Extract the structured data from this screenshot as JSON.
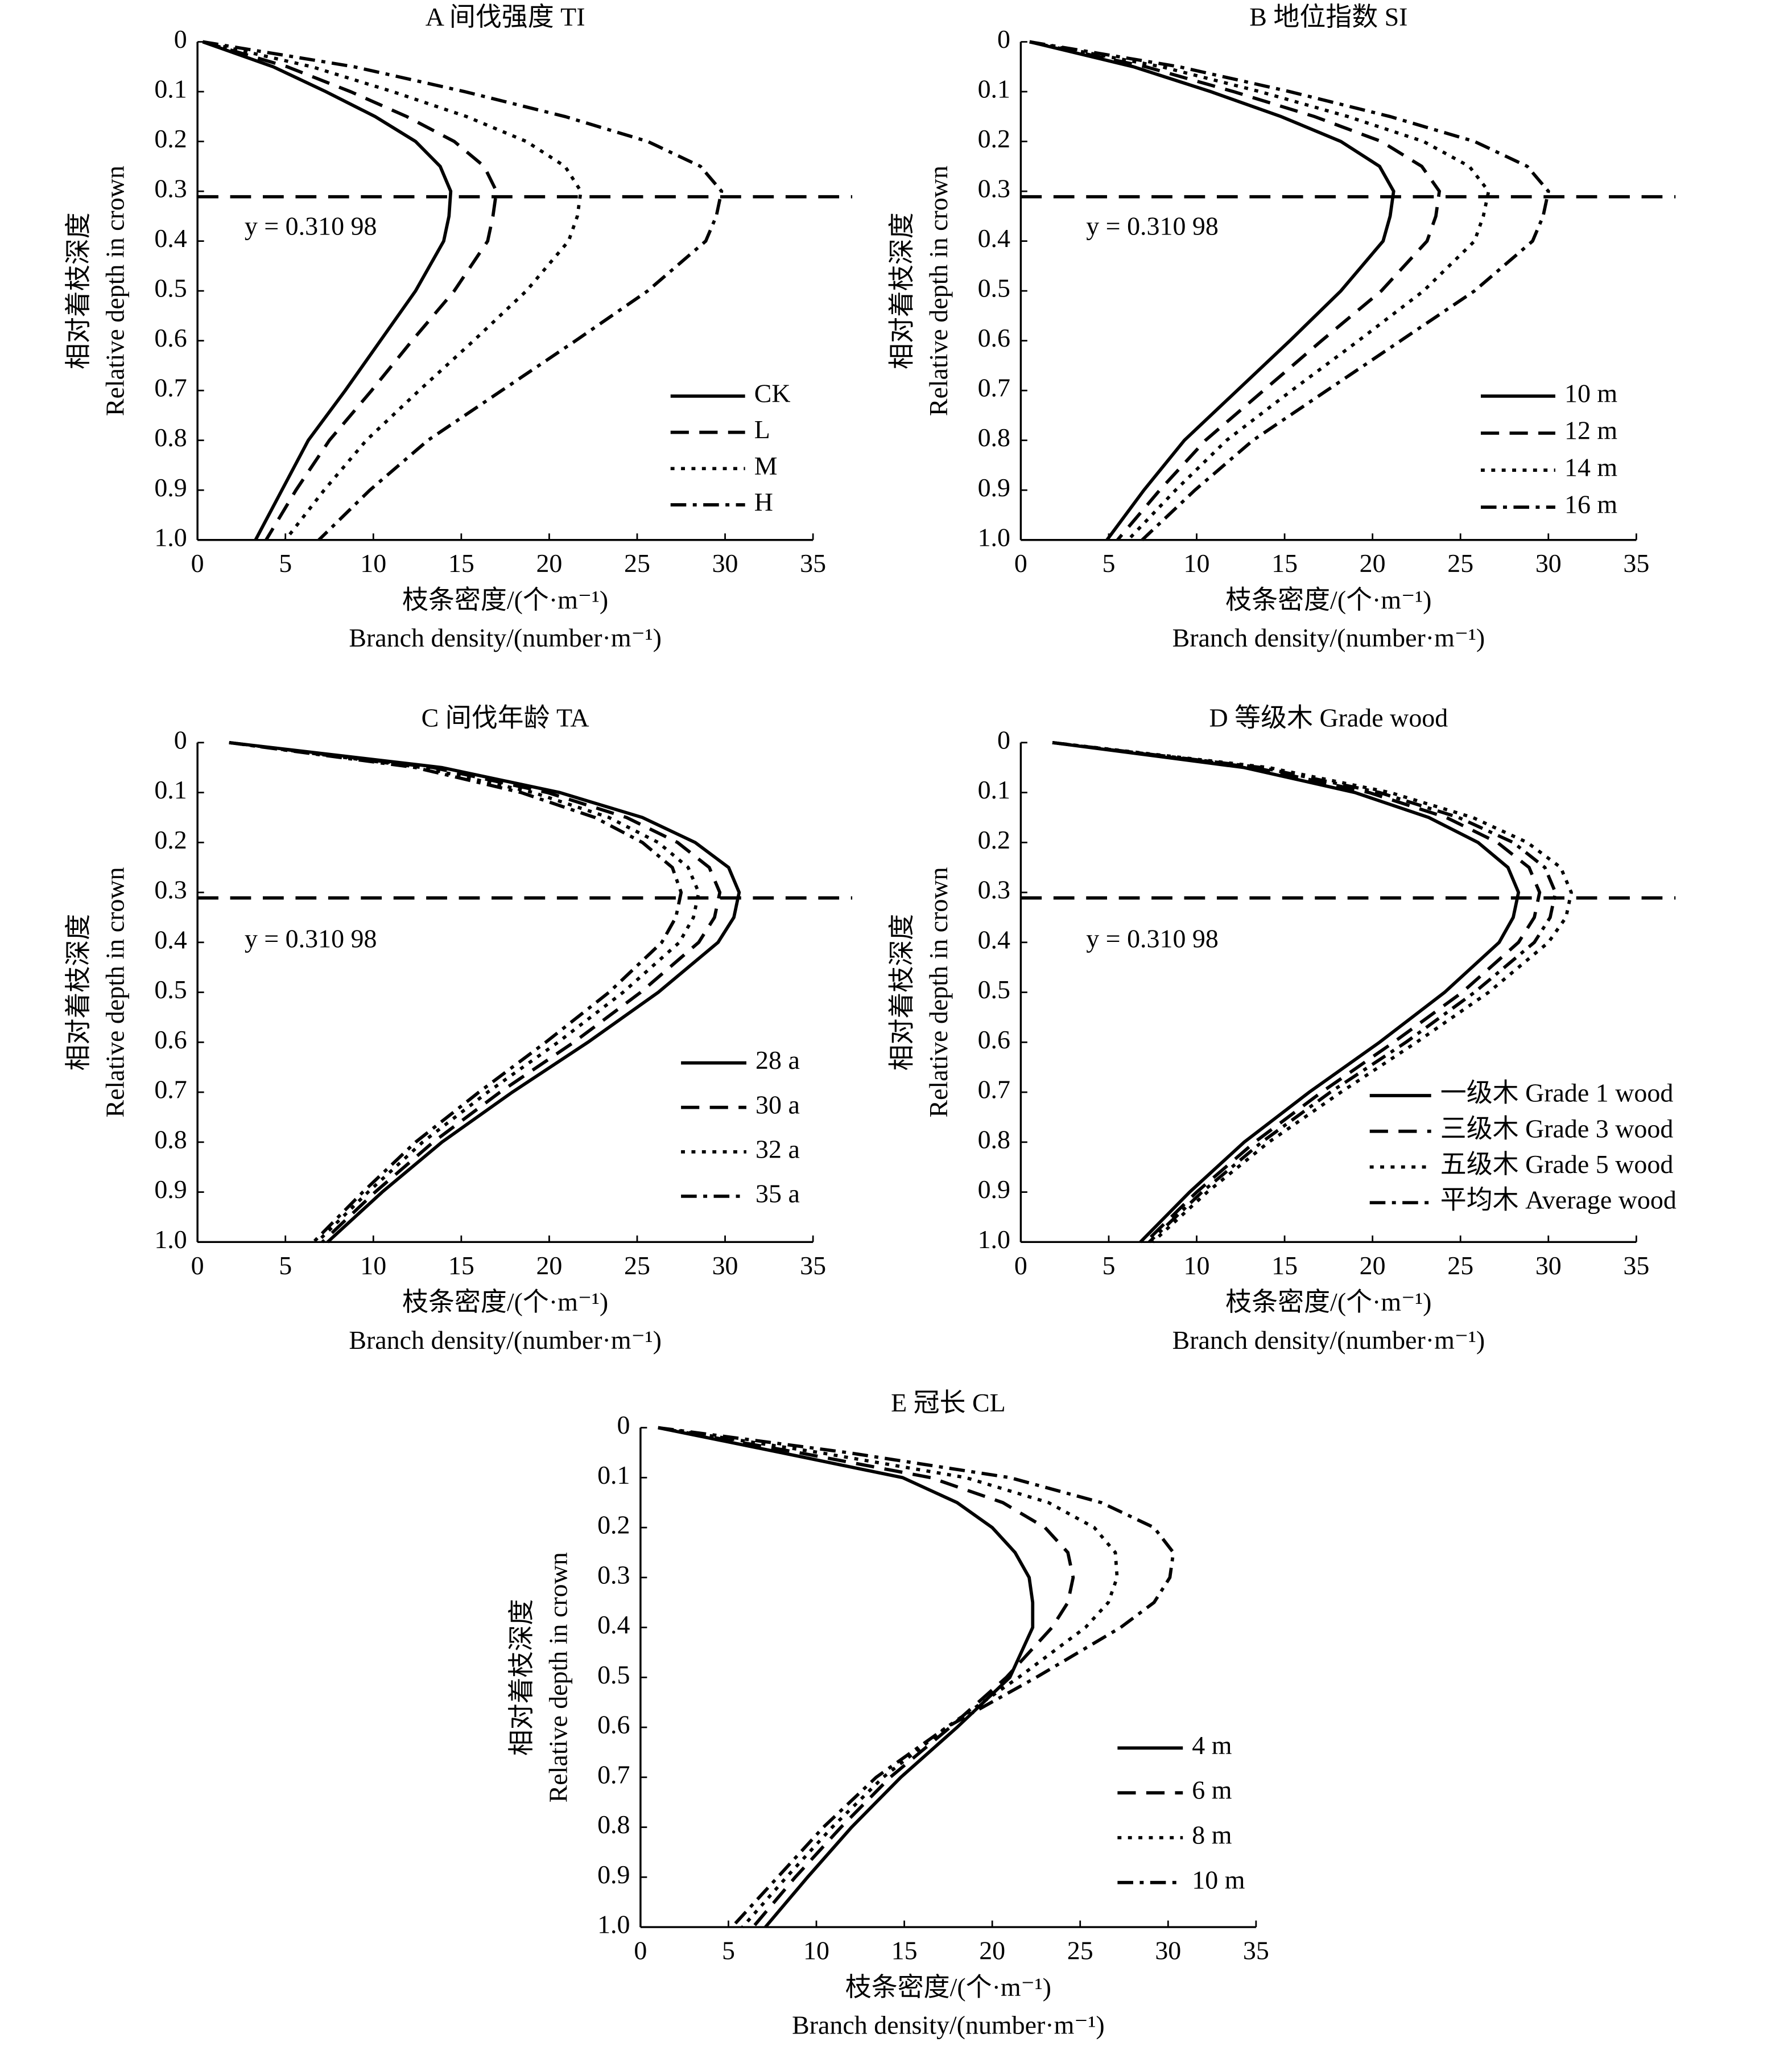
{
  "chart_data": [
    {
      "type": "line",
      "title": "A 间伐强度 TI",
      "y": [
        0,
        0.05,
        0.1,
        0.15,
        0.2,
        0.25,
        0.3,
        0.35,
        0.4,
        0.5,
        0.6,
        0.7,
        0.8,
        0.9,
        1.0
      ],
      "series": [
        {
          "name": "CK",
          "color": "#000000",
          "dash": "solid",
          "values": [
            0.3,
            4.3,
            7.3,
            10.1,
            12.4,
            13.8,
            14.4,
            14.3,
            14.0,
            12.4,
            10.4,
            8.4,
            6.3,
            4.8,
            3.3
          ]
        },
        {
          "name": "L",
          "color": "#000000",
          "dash": "dashed",
          "values": [
            0.3,
            5.1,
            8.7,
            11.9,
            14.6,
            16.3,
            17.0,
            16.8,
            16.5,
            14.6,
            12.2,
            9.9,
            7.5,
            5.6,
            3.9
          ]
        },
        {
          "name": "M",
          "color": "#000000",
          "dash": "dotted",
          "values": [
            0.3,
            6.5,
            11.1,
            15.3,
            18.7,
            20.9,
            21.8,
            21.6,
            21.1,
            18.7,
            15.7,
            12.6,
            9.6,
            7.2,
            5.0
          ]
        },
        {
          "name": "H",
          "color": "#000000",
          "dash": "dashdot",
          "values": [
            0.3,
            8.9,
            15.2,
            20.9,
            25.6,
            28.6,
            29.8,
            29.5,
            28.9,
            25.6,
            21.5,
            17.3,
            13.1,
            9.8,
            6.9
          ]
        }
      ],
      "xlim": [
        0,
        35
      ],
      "xticks": [
        0,
        5,
        10,
        15,
        20,
        25,
        30,
        35
      ],
      "ylim": [
        0,
        1
      ],
      "yticks": [
        0,
        0.1,
        0.2,
        0.3,
        0.4,
        0.5,
        0.6,
        0.7,
        0.8,
        0.9,
        {
          "value": 1,
          "label": "1.0"
        }
      ],
      "y_inverted": true,
      "xlabel": [
        "枝条密度/(个·m⁻¹)",
        "Branch density/(number·m⁻¹)"
      ],
      "ylabel": [
        "相对着枝深度",
        "Relative depth in crown"
      ],
      "hline": {
        "value": 0.31098,
        "label": "y = 0.310 98"
      },
      "legend": "lower right"
    },
    {
      "type": "line",
      "title": "B 地位指数 SI",
      "y": [
        0,
        0.05,
        0.1,
        0.15,
        0.2,
        0.25,
        0.3,
        0.35,
        0.4,
        0.5,
        0.6,
        0.7,
        0.8,
        0.9,
        1.0
      ],
      "series": [
        {
          "name": "10 m",
          "color": "#000000",
          "dash": "solid",
          "values": [
            0.5,
            6.4,
            10.8,
            14.8,
            18.2,
            20.4,
            21.2,
            21.0,
            20.6,
            18.2,
            15.3,
            12.3,
            9.3,
            7.0,
            4.9
          ]
        },
        {
          "name": "12 m",
          "color": "#000000",
          "dash": "dashed",
          "values": [
            0.5,
            7.1,
            12.1,
            16.7,
            20.5,
            22.8,
            23.8,
            23.6,
            23.1,
            20.5,
            17.1,
            13.8,
            10.5,
            7.9,
            5.5
          ]
        },
        {
          "name": "14 m",
          "color": "#000000",
          "dash": "dotted",
          "values": [
            0.5,
            8.0,
            13.6,
            18.6,
            22.9,
            25.5,
            26.6,
            26.3,
            25.8,
            22.9,
            19.2,
            15.4,
            11.7,
            8.8,
            6.1
          ]
        },
        {
          "name": "16 m",
          "color": "#000000",
          "dash": "dashdot",
          "values": [
            0.5,
            9.0,
            15.3,
            21.0,
            25.8,
            28.8,
            30.0,
            29.7,
            29.1,
            25.8,
            21.6,
            17.4,
            13.2,
            9.9,
            6.9
          ]
        }
      ],
      "xlim": [
        0,
        35
      ],
      "xticks": [
        0,
        5,
        10,
        15,
        20,
        25,
        30,
        35
      ],
      "ylim": [
        0,
        1
      ],
      "yticks": [
        0,
        0.1,
        0.2,
        0.3,
        0.4,
        0.5,
        0.6,
        0.7,
        0.8,
        0.9,
        {
          "value": 1,
          "label": "1.0"
        }
      ],
      "y_inverted": true,
      "xlabel": [
        "枝条密度/(个·m⁻¹)",
        "Branch density/(number·m⁻¹)"
      ],
      "ylabel": [
        "相对着枝深度",
        "Relative depth in crown"
      ],
      "hline": {
        "value": 0.31098,
        "label": "y = 0.310 98"
      },
      "legend": "lower right"
    },
    {
      "type": "line",
      "title": "C 间伐年龄 TA",
      "y": [
        0,
        0.05,
        0.1,
        0.15,
        0.2,
        0.25,
        0.3,
        0.35,
        0.4,
        0.5,
        0.6,
        0.7,
        0.8,
        0.9,
        1.0
      ],
      "series": [
        {
          "name": "28 a",
          "color": "#000000",
          "dash": "solid",
          "values": [
            1.8,
            13.9,
            20.6,
            25.3,
            28.3,
            30.2,
            30.8,
            30.5,
            29.6,
            26.2,
            22.2,
            17.9,
            13.9,
            10.5,
            7.4
          ]
        },
        {
          "name": "30 a",
          "color": "#000000",
          "dash": "dashed",
          "values": [
            1.8,
            13.4,
            19.9,
            24.4,
            27.3,
            29.1,
            29.7,
            29.4,
            28.5,
            25.2,
            21.4,
            17.2,
            13.4,
            10.1,
            7.1
          ]
        },
        {
          "name": "32 a",
          "color": "#000000",
          "dash": "dotted",
          "values": [
            1.8,
            12.8,
            19.1,
            23.4,
            26.2,
            27.9,
            28.5,
            28.2,
            27.4,
            24.2,
            20.5,
            16.5,
            12.8,
            9.7,
            6.8
          ]
        },
        {
          "name": "35 a",
          "color": "#000000",
          "dash": "dashdot",
          "values": [
            1.8,
            12.4,
            18.4,
            22.6,
            25.3,
            27.0,
            27.5,
            27.2,
            26.4,
            23.4,
            19.8,
            16.0,
            12.4,
            9.4,
            6.6
          ]
        }
      ],
      "xlim": [
        0,
        35
      ],
      "xticks": [
        0,
        5,
        10,
        15,
        20,
        25,
        30,
        35
      ],
      "ylim": [
        0,
        1
      ],
      "yticks": [
        0,
        0.1,
        0.2,
        0.3,
        0.4,
        0.5,
        0.6,
        0.7,
        0.8,
        0.9,
        {
          "value": 1,
          "label": "1.0"
        }
      ],
      "y_inverted": true,
      "xlabel": [
        "枝条密度/(个·m⁻¹)",
        "Branch density/(number·m⁻¹)"
      ],
      "ylabel": [
        "相对着枝深度",
        "Relative depth in crown"
      ],
      "hline": {
        "value": 0.31098,
        "label": "y = 0.310 98"
      },
      "legend": "lower right"
    },
    {
      "type": "line",
      "title": "D 等级木 Grade wood",
      "y": [
        0,
        0.05,
        0.1,
        0.15,
        0.2,
        0.25,
        0.3,
        0.35,
        0.4,
        0.5,
        0.6,
        0.7,
        0.8,
        0.9,
        1.0
      ],
      "series": [
        {
          "name": "一级木 Grade 1 wood",
          "color": "#000000",
          "dash": "solid",
          "values": [
            1.8,
            12.7,
            19.0,
            23.2,
            26.0,
            27.7,
            28.3,
            28.0,
            27.2,
            24.1,
            20.4,
            16.4,
            12.7,
            9.6,
            6.8
          ]
        },
        {
          "name": "三级木 Grade 3 wood",
          "color": "#000000",
          "dash": "dashed",
          "values": [
            1.8,
            13.3,
            19.8,
            24.2,
            27.1,
            28.9,
            29.5,
            29.2,
            28.3,
            25.1,
            21.2,
            17.1,
            13.3,
            10.0,
            7.1
          ]
        },
        {
          "name": "五级木 Grade 5 wood",
          "color": "#000000",
          "dash": "dotted",
          "values": [
            1.8,
            14.1,
            21.0,
            25.7,
            28.8,
            30.7,
            31.3,
            31.0,
            30.0,
            26.6,
            22.5,
            18.2,
            14.1,
            10.6,
            7.5
          ]
        },
        {
          "name": "平均木 Average wood",
          "color": "#000000",
          "dash": "dashdot",
          "values": [
            1.8,
            13.7,
            20.4,
            24.9,
            28.0,
            29.8,
            30.4,
            30.1,
            29.2,
            25.8,
            21.9,
            17.6,
            13.7,
            10.3,
            7.3
          ]
        }
      ],
      "xlim": [
        0,
        35
      ],
      "xticks": [
        0,
        5,
        10,
        15,
        20,
        25,
        30,
        35
      ],
      "ylim": [
        0,
        1
      ],
      "yticks": [
        0,
        0.1,
        0.2,
        0.3,
        0.4,
        0.5,
        0.6,
        0.7,
        0.8,
        0.9,
        {
          "value": 1,
          "label": "1.0"
        }
      ],
      "y_inverted": true,
      "xlabel": [
        "枝条密度/(个·m⁻¹)",
        "Branch density/(number·m⁻¹)"
      ],
      "ylabel": [
        "相对着枝深度",
        "Relative depth in crown"
      ],
      "hline": {
        "value": 0.31098,
        "label": "y = 0.310 98"
      },
      "legend": "lower right"
    },
    {
      "type": "line",
      "title": "E 冠长 CL",
      "y": [
        0,
        0.05,
        0.1,
        0.15,
        0.2,
        0.25,
        0.3,
        0.35,
        0.4,
        0.5,
        0.6,
        0.7,
        0.8,
        0.9,
        1.0
      ],
      "series": [
        {
          "name": "4 m",
          "color": "#000000",
          "dash": "solid",
          "values": [
            1.0,
            8.0,
            14.9,
            18.0,
            20.0,
            21.3,
            22.1,
            22.3,
            22.3,
            21.0,
            18.0,
            14.8,
            12.0,
            9.5,
            7.1
          ]
        },
        {
          "name": "6 m",
          "color": "#000000",
          "dash": "dashed",
          "values": [
            1.0,
            9.0,
            16.5,
            20.6,
            23.0,
            24.3,
            24.6,
            24.3,
            23.4,
            20.8,
            17.6,
            14.2,
            11.4,
            8.8,
            6.4
          ]
        },
        {
          "name": "8 m",
          "color": "#000000",
          "dash": "dotted",
          "values": [
            1.0,
            10.2,
            18.5,
            23.2,
            25.8,
            27.0,
            27.1,
            26.6,
            25.3,
            21.5,
            17.4,
            13.8,
            10.9,
            8.3,
            5.8
          ]
        },
        {
          "name": "10 m",
          "color": "#000000",
          "dash": "dashdot",
          "values": [
            1.0,
            11.8,
            21.0,
            26.2,
            29.2,
            30.3,
            30.1,
            29.2,
            27.3,
            22.5,
            17.4,
            13.4,
            10.4,
            7.8,
            5.2
          ]
        }
      ],
      "xlim": [
        0,
        35
      ],
      "xticks": [
        0,
        5,
        10,
        15,
        20,
        25,
        30,
        35
      ],
      "ylim": [
        0,
        1
      ],
      "yticks": [
        0,
        0.1,
        0.2,
        0.3,
        0.4,
        0.5,
        0.6,
        0.7,
        0.8,
        0.9,
        {
          "value": 1,
          "label": "1.0"
        }
      ],
      "y_inverted": true,
      "xlabel": [
        "枝条密度/(个·m⁻¹)",
        "Branch density/(number·m⁻¹)"
      ],
      "ylabel": [
        "相对着枝深度",
        "Relative depth in crown"
      ],
      "legend": "lower right"
    }
  ]
}
